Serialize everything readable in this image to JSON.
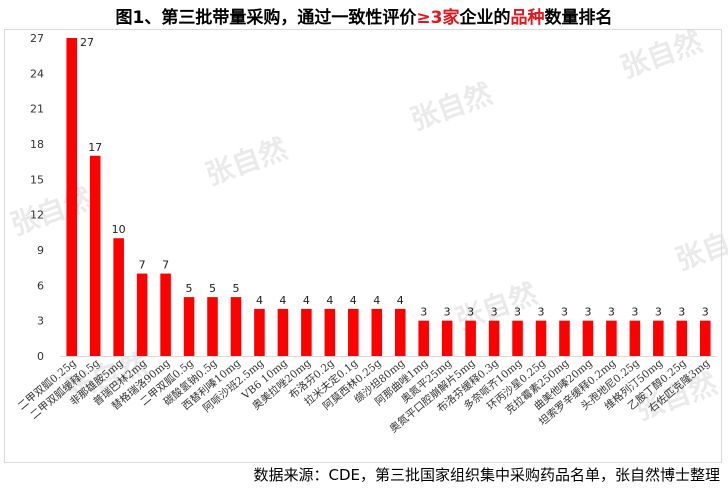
{
  "title": {
    "part1": "图1、第三批带量采购，通过一致性评价",
    "part2": "≥3家",
    "part3": "企业的",
    "part4": "品种",
    "part5": "数量排名"
  },
  "source": "数据来源：CDE，第三批国家组织集中采购药品名单，张自然博士整理",
  "watermark_text": "张自然",
  "colors": {
    "bar": "#ff0000",
    "highlight": "#e8141b",
    "axis": "#d9d9d9"
  },
  "chart_data": {
    "type": "bar",
    "title": "图1、第三批带量采购，通过一致性评价≥3家企业的品种数量排名",
    "xlabel": "",
    "ylabel": "",
    "ylim": [
      0,
      27
    ],
    "yticks": [
      0,
      3,
      6,
      9,
      12,
      15,
      18,
      21,
      24,
      27
    ],
    "grid": false,
    "legend": "none",
    "categories": [
      "二甲双胍0.25g",
      "二甲双胍缓释0.5g",
      "非那雄胺5mg",
      "普瑞巴林2mg",
      "替格瑞洛90mg",
      "二甲双胍0.5g",
      "碳酸氢钠0.5g",
      "西替利嗪10mg",
      "阿哌沙班2.5mg",
      "VB6 10mg",
      "奥美拉唑20mg",
      "布洛芬0.2g",
      "拉米夫定0.1g",
      "阿莫西林0.25g",
      "缬沙坦80mg",
      "阿那曲唑1mg",
      "奥氮平25mg",
      "奥氮平口腔崩解片5mg",
      "布洛芬缓释0.3g",
      "多奈哌齐10mg",
      "环丙沙星0.25g",
      "克拉霉素250mg",
      "曲美他嗪20mg",
      "坦索罗辛缓释0.2mg",
      "头孢地尼0.25g",
      "维格列汀50mg",
      "乙胺丁醇0.25g",
      "右佐匹克隆3mg"
    ],
    "values": [
      27,
      17,
      10,
      7,
      7,
      5,
      5,
      5,
      4,
      4,
      4,
      4,
      4,
      4,
      4,
      3,
      3,
      3,
      3,
      3,
      3,
      3,
      3,
      3,
      3,
      3,
      3,
      3
    ]
  }
}
